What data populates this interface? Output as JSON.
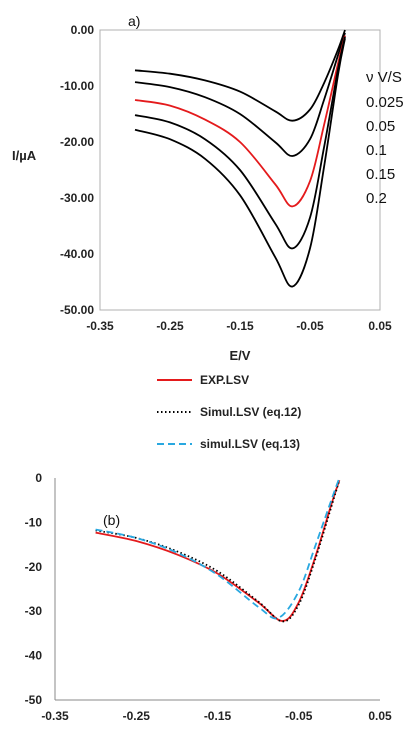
{
  "chart_data": [
    {
      "type": "line",
      "panel_label": "a)",
      "xlabel": "E/V",
      "ylabel": "I/µA",
      "xlim": [
        -0.35,
        0.05
      ],
      "ylim": [
        -50,
        0
      ],
      "x_ticks": [
        "-0.35",
        "-0.25",
        "-0.15",
        "-0.05",
        "0.05"
      ],
      "y_ticks": [
        "0.00",
        "-10.00",
        "-20.00",
        "-30.00",
        "-40.00",
        "-50.00"
      ],
      "grid": false,
      "legend_title": "ν V/S",
      "series": [
        {
          "name": "0.025",
          "color": "#000000",
          "x": [
            -0.3,
            -0.25,
            -0.2,
            -0.15,
            -0.1,
            -0.075,
            -0.05,
            -0.03,
            -0.01,
            0.0
          ],
          "y": [
            -7.2,
            -7.8,
            -9.0,
            -11.0,
            -14.5,
            -16.2,
            -14.2,
            -9.5,
            -3.5,
            0.0
          ]
        },
        {
          "name": "0.05",
          "color": "#000000",
          "x": [
            -0.3,
            -0.25,
            -0.2,
            -0.15,
            -0.1,
            -0.075,
            -0.05,
            -0.03,
            -0.01,
            0.0
          ],
          "y": [
            -9.3,
            -10.2,
            -12.0,
            -15.0,
            -20.0,
            -22.5,
            -19.5,
            -12.5,
            -4.5,
            -0.5
          ]
        },
        {
          "name": "0.1",
          "color": "#e41a1c",
          "x": [
            -0.3,
            -0.25,
            -0.2,
            -0.15,
            -0.1,
            -0.075,
            -0.05,
            -0.03,
            -0.01,
            0.0
          ],
          "y": [
            -12.5,
            -13.5,
            -16.0,
            -20.0,
            -27.5,
            -31.5,
            -27.0,
            -17.0,
            -6.0,
            -1.0
          ]
        },
        {
          "name": "0.15",
          "color": "#000000",
          "x": [
            -0.3,
            -0.25,
            -0.2,
            -0.15,
            -0.1,
            -0.075,
            -0.05,
            -0.03,
            -0.01,
            0.0
          ],
          "y": [
            -15.2,
            -16.5,
            -19.5,
            -25.0,
            -34.5,
            -39.0,
            -33.5,
            -21.0,
            -7.0,
            -1.2
          ]
        },
        {
          "name": "0.2",
          "color": "#000000",
          "x": [
            -0.3,
            -0.25,
            -0.2,
            -0.15,
            -0.1,
            -0.075,
            -0.05,
            -0.03,
            -0.01,
            0.0
          ],
          "y": [
            -17.8,
            -19.5,
            -23.0,
            -29.5,
            -40.5,
            -45.8,
            -39.0,
            -24.5,
            -8.0,
            -1.5
          ]
        }
      ]
    },
    {
      "type": "line",
      "panel_label": "(b)",
      "xlabel": "",
      "ylabel": "",
      "xlim": [
        -0.35,
        0.05
      ],
      "ylim": [
        -50,
        0
      ],
      "x_ticks": [
        "-0.35",
        "-0.25",
        "-0.15",
        "-0.05",
        "0.05"
      ],
      "y_ticks": [
        "0",
        "-10",
        "-20",
        "-30",
        "-40",
        "-50"
      ],
      "grid": false,
      "legend_position": "top",
      "series": [
        {
          "name": "EXP.LSV",
          "color": "#e41a1c",
          "dash": "solid",
          "x": [
            -0.3,
            -0.25,
            -0.2,
            -0.15,
            -0.1,
            -0.07,
            -0.05,
            -0.03,
            -0.01,
            0.0
          ],
          "y": [
            -12.3,
            -14.2,
            -17.2,
            -21.5,
            -28.0,
            -32.2,
            -28.0,
            -18.0,
            -6.0,
            -0.5
          ]
        },
        {
          "name": "Simul.LSV (eq.12)",
          "color": "#000000",
          "dash": "dotted",
          "x": [
            -0.3,
            -0.25,
            -0.2,
            -0.15,
            -0.1,
            -0.07,
            -0.05,
            -0.03,
            -0.01,
            0.0
          ],
          "y": [
            -11.8,
            -13.5,
            -16.5,
            -21.0,
            -27.8,
            -32.3,
            -28.5,
            -18.5,
            -6.5,
            -0.5
          ]
        },
        {
          "name": "simul.LSV (eq.13)",
          "color": "#29a8e0",
          "dash": "dashed",
          "x": [
            -0.3,
            -0.25,
            -0.2,
            -0.15,
            -0.1,
            -0.075,
            -0.05,
            -0.03,
            -0.01,
            0.0
          ],
          "y": [
            -11.6,
            -13.5,
            -16.8,
            -21.8,
            -29.0,
            -31.5,
            -25.5,
            -15.5,
            -5.0,
            0.0
          ]
        }
      ]
    }
  ]
}
